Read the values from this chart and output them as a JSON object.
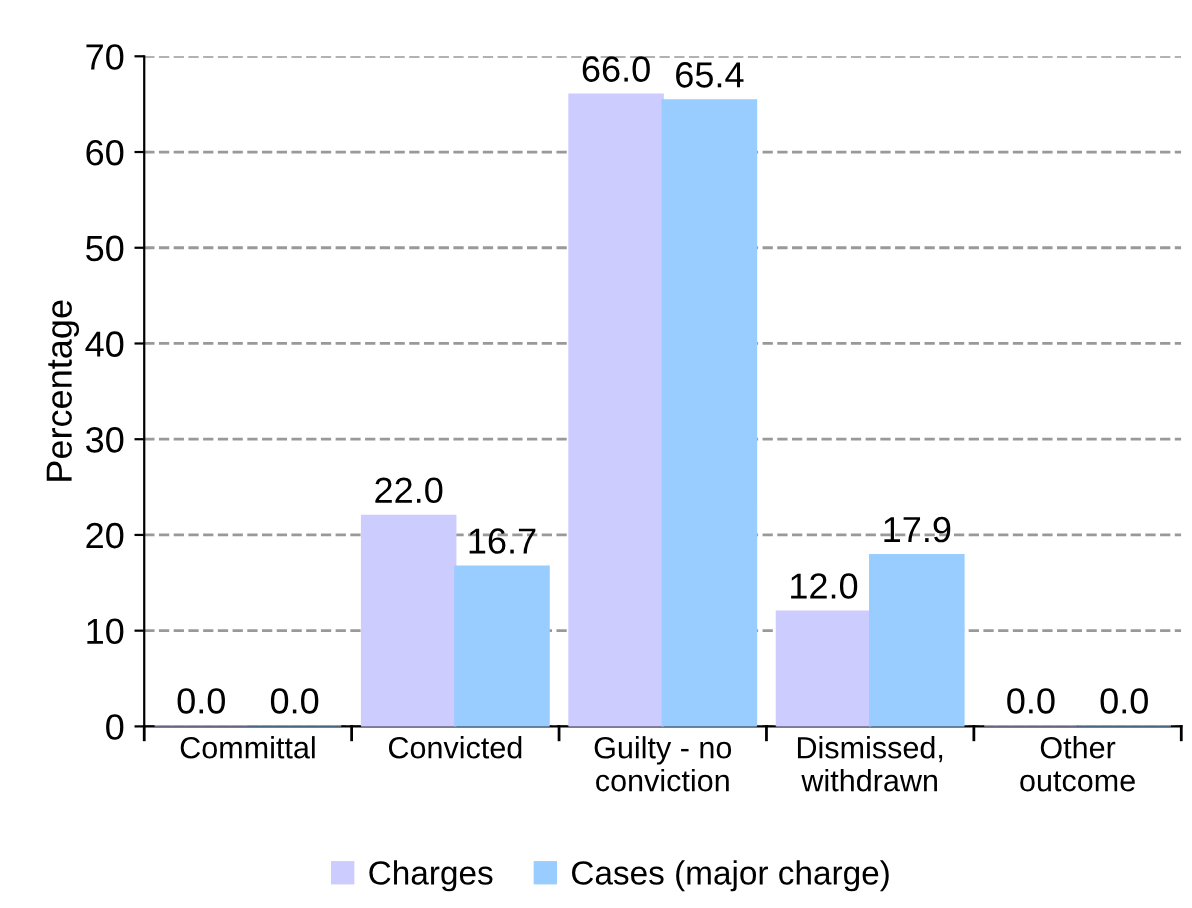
{
  "chart_data": {
    "type": "bar",
    "ylabel": "Percentage",
    "categories": [
      "Committal",
      "Convicted",
      "Guilty - no\nconviction",
      "Dismissed,\nwithdrawn",
      "Other\noutcome"
    ],
    "series": [
      {
        "name": "Charges",
        "color": "#ccccff",
        "values": [
          0.0,
          22.0,
          66.0,
          12.0,
          0.0
        ],
        "value_labels": [
          "0.0",
          "22.0",
          "66.0",
          "12.0",
          "0.0"
        ]
      },
      {
        "name": "Cases (major charge)",
        "color": "#99ccff",
        "values": [
          0.0,
          16.7,
          65.4,
          17.9,
          0.0
        ],
        "value_labels": [
          "0.0",
          "16.7",
          "65.4",
          "17.9",
          "0.0"
        ]
      }
    ],
    "ylim": [
      0,
      70
    ],
    "yticks": [
      0,
      10,
      20,
      30,
      40,
      50,
      60,
      70
    ],
    "grid": "y",
    "legend": "bottom"
  }
}
